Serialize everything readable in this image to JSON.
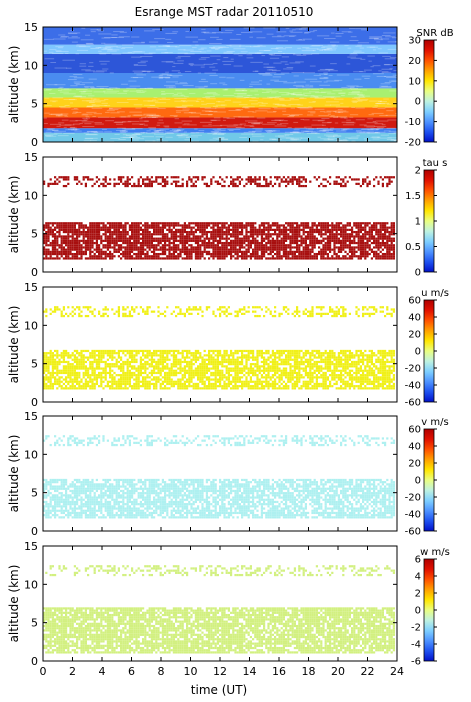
{
  "chart_data": {
    "type": "heatmap",
    "title": "Esrange MST radar 20110510",
    "xlabel": "time (UT)",
    "xlim": [
      0,
      24
    ],
    "xticks": [
      "0",
      "2",
      "4",
      "6",
      "8",
      "10",
      "12",
      "14",
      "16",
      "18",
      "20",
      "22",
      "24"
    ],
    "panels": [
      {
        "id": "snr",
        "ylabel": "altitude (km)",
        "ylim": [
          0,
          15
        ],
        "yticks": [
          "0",
          "5",
          "10",
          "15"
        ],
        "colorbar_label": "SNR dB",
        "colorbar_range": [
          -20,
          30
        ],
        "colorbar_ticks": [
          "-20",
          "-10",
          "0",
          "10",
          "20",
          "30"
        ],
        "bands": [
          {
            "from": 0.0,
            "to": 1.2,
            "color": "#70c8e8",
            "density": 1.0
          },
          {
            "from": 1.2,
            "to": 1.8,
            "color": "#3f7ff0",
            "density": 1.0
          },
          {
            "from": 1.8,
            "to": 3.2,
            "color": "#d01a10",
            "density": 1.0
          },
          {
            "from": 3.2,
            "to": 4.5,
            "color": "#ff6a10",
            "density": 1.0
          },
          {
            "from": 4.5,
            "to": 5.8,
            "color": "#ffd21a",
            "density": 1.0
          },
          {
            "from": 5.8,
            "to": 7.0,
            "color": "#a8f070",
            "density": 1.0
          },
          {
            "from": 7.0,
            "to": 9.0,
            "color": "#4a8cf0",
            "density": 1.0
          },
          {
            "from": 9.0,
            "to": 11.5,
            "color": "#2d56d8",
            "density": 1.0
          },
          {
            "from": 11.5,
            "to": 12.7,
            "color": "#7fc6ff",
            "density": 1.0
          },
          {
            "from": 12.7,
            "to": 15.0,
            "color": "#3c6ee8",
            "density": 1.0
          }
        ]
      },
      {
        "id": "tau",
        "ylabel": "altitude (km)",
        "ylim": [
          0,
          15
        ],
        "yticks": [
          "0",
          "5",
          "10",
          "15"
        ],
        "colorbar_label": "tau s",
        "colorbar_range": [
          0,
          2
        ],
        "colorbar_ticks": [
          "0",
          "0.5",
          "1",
          "1.5",
          "2"
        ],
        "bands": [
          {
            "from": 1.5,
            "to": 6.5,
            "color": "#a80f0f",
            "density": 0.82
          },
          {
            "from": 10.8,
            "to": 12.5,
            "color": "#a80f0f",
            "density": 0.4
          }
        ]
      },
      {
        "id": "u",
        "ylabel": "altitude (km)",
        "ylim": [
          0,
          15
        ],
        "yticks": [
          "0",
          "5",
          "10",
          "15"
        ],
        "colorbar_label": "u m/s",
        "colorbar_range": [
          -60,
          60
        ],
        "colorbar_ticks": [
          "-60",
          "-40",
          "-20",
          "0",
          "20",
          "40",
          "60"
        ],
        "bands": [
          {
            "from": 1.5,
            "to": 6.8,
            "color": "#f0f018",
            "density": 0.75
          },
          {
            "from": 10.8,
            "to": 12.5,
            "color": "#f0f018",
            "density": 0.35
          }
        ]
      },
      {
        "id": "v",
        "ylabel": "altitude (km)",
        "ylim": [
          0,
          15
        ],
        "yticks": [
          "0",
          "5",
          "10",
          "15"
        ],
        "colorbar_label": "v m/s",
        "colorbar_range": [
          -60,
          60
        ],
        "colorbar_ticks": [
          "-60",
          "-40",
          "-20",
          "0",
          "20",
          "40",
          "60"
        ],
        "bands": [
          {
            "from": 1.5,
            "to": 6.8,
            "color": "#aef0f0",
            "density": 0.75
          },
          {
            "from": 10.8,
            "to": 12.5,
            "color": "#aef0f0",
            "density": 0.35
          }
        ]
      },
      {
        "id": "w",
        "ylabel": "altitude (km)",
        "ylim": [
          0,
          15
        ],
        "yticks": [
          "0",
          "5",
          "10",
          "15"
        ],
        "colorbar_label": "w m/s",
        "colorbar_range": [
          -6,
          6
        ],
        "colorbar_ticks": [
          "-6",
          "-4",
          "-2",
          "0",
          "2",
          "4",
          "6"
        ],
        "bands": [
          {
            "from": 0.8,
            "to": 7.0,
            "color": "#d2f080",
            "density": 0.8
          },
          {
            "from": 10.8,
            "to": 12.5,
            "color": "#d2f080",
            "density": 0.35
          }
        ]
      }
    ],
    "colormap": [
      "#0010c8",
      "#1f52f0",
      "#4f94ff",
      "#7fd0ff",
      "#bff2e0",
      "#eaff80",
      "#ffe600",
      "#ffa000",
      "#ff5000",
      "#e01000",
      "#b00000"
    ]
  }
}
